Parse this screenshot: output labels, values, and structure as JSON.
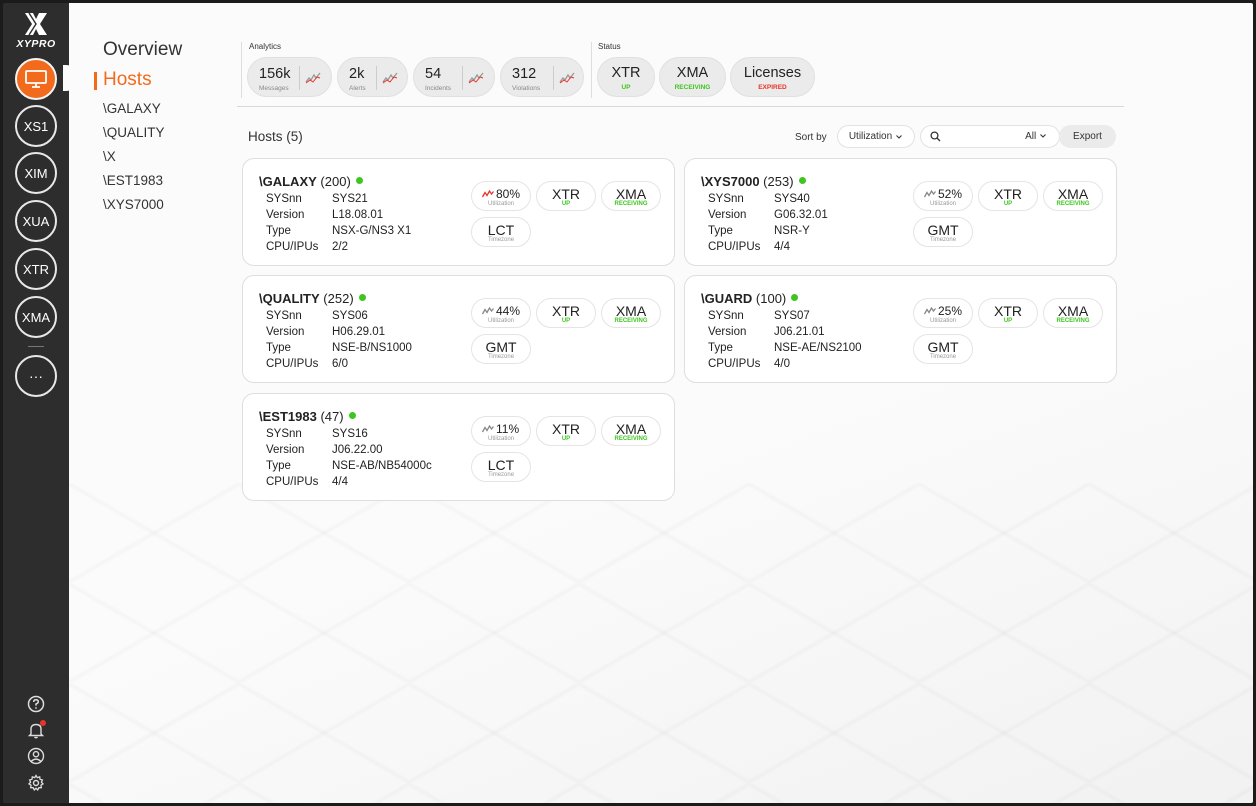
{
  "brand": {
    "name": "XYPRO"
  },
  "rail": {
    "items": [
      {
        "label": "XS1"
      },
      {
        "label": "XIM"
      },
      {
        "label": "XUA"
      },
      {
        "label": "XTR"
      },
      {
        "label": "XMA"
      },
      {
        "label": "···"
      }
    ],
    "bottom_icons": [
      "help-icon",
      "bell-icon",
      "user-icon",
      "gear-icon"
    ]
  },
  "subnav": {
    "title": "Overview",
    "active": "Hosts",
    "items": [
      "\\GALAXY",
      "\\QUALITY",
      "\\X",
      "\\EST1983",
      "\\XYS7000"
    ]
  },
  "analytics": {
    "label": "Analytics",
    "cards": [
      {
        "value": "156k",
        "label": "Messages"
      },
      {
        "value": "2k",
        "label": "Alerts"
      },
      {
        "value": "54",
        "label": "Incidents"
      },
      {
        "value": "312",
        "label": "Violations"
      }
    ]
  },
  "status": {
    "label": "Status",
    "cards": [
      {
        "name": "XTR",
        "state": "UP",
        "color": "#3ec61f"
      },
      {
        "name": "XMA",
        "state": "RECEIVING",
        "color": "#3ec61f"
      },
      {
        "name": "Licenses",
        "state": "EXPIRED",
        "color": "#e8342a"
      }
    ]
  },
  "toolbar": {
    "hosts_title": "Hosts (5)",
    "sort_by_label": "Sort by",
    "sort_value": "Utilization",
    "search_placeholder": "",
    "filter_value": "All",
    "export_label": "Export"
  },
  "hosts": [
    {
      "name": "\\GALAXY",
      "num": "(200)",
      "sysnn": "SYS21",
      "version": "L18.08.01",
      "type": "NSX-G/NS3 X1",
      "cpu": "2/2",
      "util": "80%",
      "util_label": "Utilization",
      "util_hot": true,
      "xtr": "XTR",
      "xtr_state": "UP",
      "xma": "XMA",
      "xma_state": "RECEIVING",
      "tz": "LCT",
      "tz_label": "Timezone"
    },
    {
      "name": "\\XYS7000",
      "num": "(253)",
      "sysnn": "SYS40",
      "version": "G06.32.01",
      "type": "NSR-Y",
      "cpu": "4/4",
      "util": "52%",
      "util_label": "Utilization",
      "util_hot": false,
      "xtr": "XTR",
      "xtr_state": "UP",
      "xma": "XMA",
      "xma_state": "RECEIVING",
      "tz": "GMT",
      "tz_label": "Timezone"
    },
    {
      "name": "\\QUALITY",
      "num": "(252)",
      "sysnn": "SYS06",
      "version": "H06.29.01",
      "type": "NSE-B/NS1000",
      "cpu": "6/0",
      "util": "44%",
      "util_label": "Utilization",
      "util_hot": false,
      "xtr": "XTR",
      "xtr_state": "UP",
      "xma": "XMA",
      "xma_state": "RECEIVING",
      "tz": "GMT",
      "tz_label": "Timezone"
    },
    {
      "name": "\\GUARD",
      "num": "(100)",
      "sysnn": "SYS07",
      "version": "J06.21.01",
      "type": "NSE-AE/NS2100",
      "cpu": "4/0",
      "util": "25%",
      "util_label": "Utilization",
      "util_hot": false,
      "xtr": "XTR",
      "xtr_state": "UP",
      "xma": "XMA",
      "xma_state": "RECEIVING",
      "tz": "GMT",
      "tz_label": "Timezone"
    },
    {
      "name": "\\EST1983",
      "num": "(47)",
      "sysnn": "SYS16",
      "version": "J06.22.00",
      "type": "NSE-AB/NB54000c",
      "cpu": "4/4",
      "util": "11%",
      "util_label": "Utilization",
      "util_hot": false,
      "xtr": "XTR",
      "xtr_state": "UP",
      "xma": "XMA",
      "xma_state": "RECEIVING",
      "tz": "LCT",
      "tz_label": "Timezone"
    }
  ],
  "labels": {
    "sysnn": "SYSnn",
    "version": "Version",
    "type": "Type",
    "cpu": "CPU/IPUs"
  },
  "colors": {
    "accent": "#f26b1d",
    "ok": "#3ec61f",
    "alert": "#e8342a"
  }
}
